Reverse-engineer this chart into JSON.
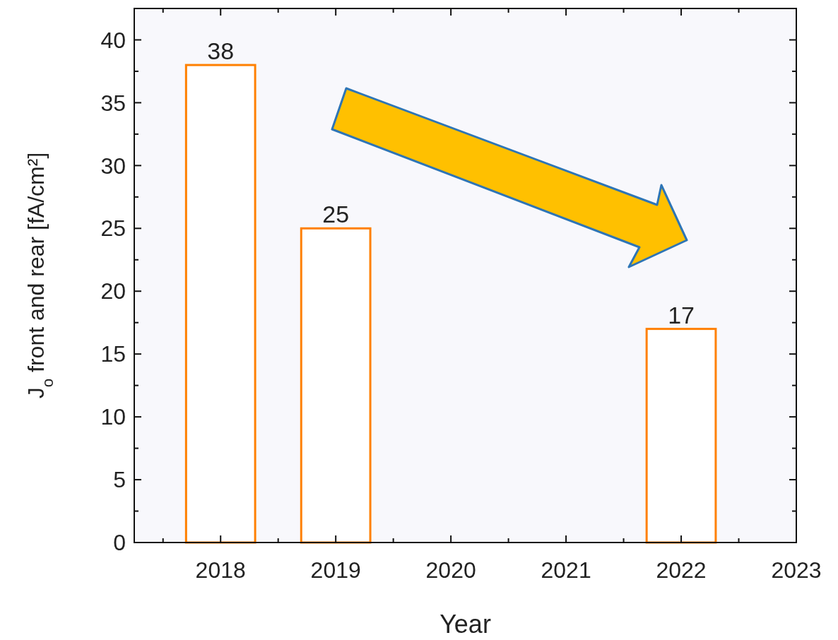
{
  "chart_data": {
    "type": "bar",
    "xlabel": "Year",
    "ylabel": "J$_{o}$ front and rear  [fA/cm²]",
    "x": [
      2018,
      2019,
      2022
    ],
    "values": [
      38,
      25,
      17
    ],
    "color": "#ff8000",
    "data_labels": true,
    "xlim": [
      2017.25,
      2023
    ],
    "xticks": [
      2018,
      2019,
      2020,
      2021,
      2022,
      2023,
      {
        "value": 2017.5,
        "label": null
      },
      {
        "value": 2018.5,
        "label": null
      },
      {
        "value": 2019.5,
        "label": null
      },
      {
        "value": 2020.5,
        "label": null
      },
      {
        "value": 2021.5,
        "label": null
      },
      {
        "value": 2022.5,
        "label": null
      }
    ],
    "ylim": [
      0,
      42.5
    ],
    "yticks": [
      0,
      5,
      10,
      15,
      20,
      25,
      30,
      35,
      40,
      {
        "value": 2.5,
        "label": null
      },
      {
        "value": 7.5,
        "label": null
      },
      {
        "value": 12.5,
        "label": null
      },
      {
        "value": 17.5,
        "label": null
      },
      {
        "value": 22.5,
        "label": null
      },
      {
        "value": 27.5,
        "label": null
      },
      {
        "value": 32.5,
        "label": null
      },
      {
        "value": 37.5,
        "label": null
      },
      {
        "value": 42.5,
        "label": null
      }
    ]
  }
}
